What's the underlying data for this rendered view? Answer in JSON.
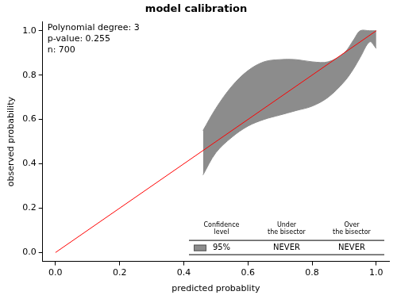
{
  "chart_data": {
    "type": "line",
    "title": "model calibration",
    "x_label": "predicted probablity",
    "y_label": "observed probability",
    "xlim": [
      -0.04,
      1.04
    ],
    "ylim": [
      -0.04,
      1.04
    ],
    "xticks": [
      {
        "value": 0,
        "label": "0.0"
      },
      0.2,
      0.4,
      0.6,
      0.8,
      {
        "value": 1,
        "label": "1.0"
      }
    ],
    "yticks": [
      {
        "value": 0,
        "label": "0.0"
      },
      0.2,
      0.4,
      0.6,
      0.8,
      {
        "value": 1,
        "label": "1.0"
      }
    ],
    "grid": false,
    "annotations": [
      "Polynomial degree: 3",
      "p-value: 0.255",
      "n: 700"
    ],
    "bisector": {
      "x": [
        0,
        1
      ],
      "values": [
        0,
        1
      ],
      "color": "#ff0000"
    },
    "confidence_band": {
      "x": [
        0.46,
        0.5,
        0.55,
        0.6,
        0.65,
        0.7,
        0.75,
        0.8,
        0.85,
        0.9,
        0.93,
        0.95,
        0.98,
        1.0
      ],
      "lower": [
        0.35,
        0.45,
        0.52,
        0.57,
        0.6,
        0.62,
        0.64,
        0.66,
        0.7,
        0.77,
        0.83,
        0.88,
        0.95,
        0.92
      ],
      "upper": [
        0.55,
        0.65,
        0.75,
        0.82,
        0.86,
        0.87,
        0.87,
        0.86,
        0.86,
        0.9,
        0.96,
        1.0,
        1.0,
        1.0
      ],
      "color": "#8c8c8c"
    },
    "table": {
      "header": [
        [
          "Confidence",
          "level"
        ],
        [
          "Under",
          "the bisector"
        ],
        [
          "Over",
          "the bisector"
        ]
      ],
      "rows": [
        [
          "95%",
          "NEVER",
          "NEVER"
        ]
      ]
    }
  }
}
